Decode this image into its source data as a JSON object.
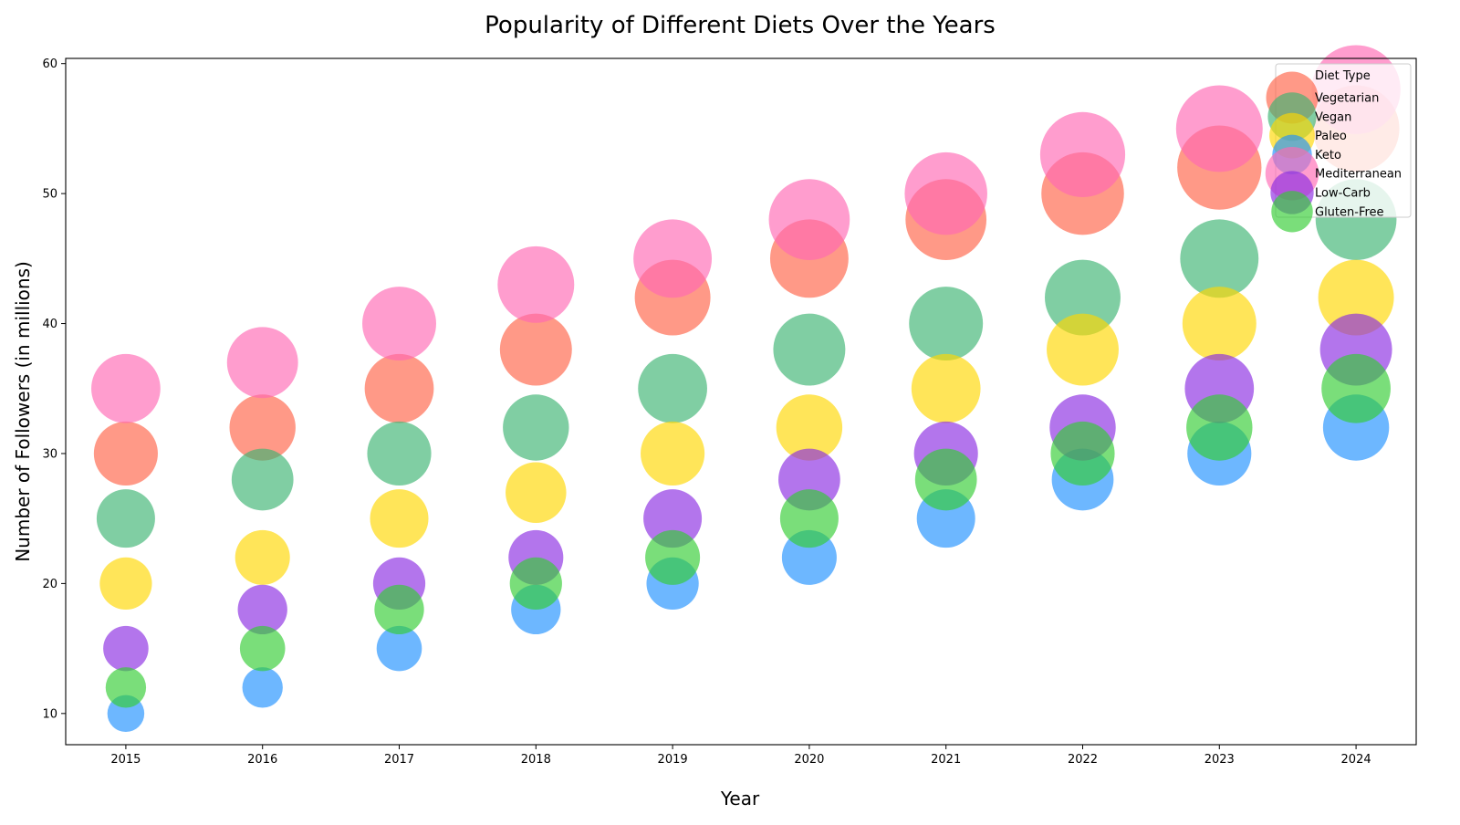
{
  "chart_data": {
    "type": "scatter",
    "title": "Popularity of Different Diets Over the Years",
    "xlabel": "Year",
    "ylabel": "Number of Followers (in millions)",
    "x": [
      2015,
      2016,
      2017,
      2018,
      2019,
      2020,
      2021,
      2022,
      2023,
      2024
    ],
    "xlim": [
      2014.56,
      2024.44
    ],
    "ylim": [
      7.6,
      60.4
    ],
    "yticks": [
      10,
      20,
      30,
      40,
      50,
      60
    ],
    "grid": false,
    "marker_alpha": 0.65,
    "size_encoding": "bubble area proportional to followers",
    "legend": {
      "title": "Diet Type",
      "position": "top-right"
    },
    "series": [
      {
        "name": "Vegetarian",
        "color": "#ff6347",
        "values": [
          30,
          32,
          35,
          38,
          42,
          45,
          48,
          50,
          52,
          55
        ]
      },
      {
        "name": "Vegan",
        "color": "#3cb371",
        "values": [
          25,
          28,
          30,
          32,
          35,
          38,
          40,
          42,
          45,
          48
        ]
      },
      {
        "name": "Paleo",
        "color": "#ffd700",
        "values": [
          20,
          22,
          25,
          27,
          30,
          32,
          35,
          38,
          40,
          42
        ]
      },
      {
        "name": "Keto",
        "color": "#1e90ff",
        "values": [
          10,
          12,
          15,
          18,
          20,
          22,
          25,
          28,
          30,
          32
        ]
      },
      {
        "name": "Mediterranean",
        "color": "#ff69b4",
        "values": [
          35,
          37,
          40,
          43,
          45,
          48,
          50,
          53,
          55,
          58
        ]
      },
      {
        "name": "Low-Carb",
        "color": "#8a2be2",
        "values": [
          15,
          18,
          20,
          22,
          25,
          28,
          30,
          32,
          35,
          38
        ]
      },
      {
        "name": "Gluten-Free",
        "color": "#32cd32",
        "values": [
          12,
          15,
          18,
          20,
          22,
          25,
          28,
          30,
          32,
          35
        ]
      }
    ]
  }
}
